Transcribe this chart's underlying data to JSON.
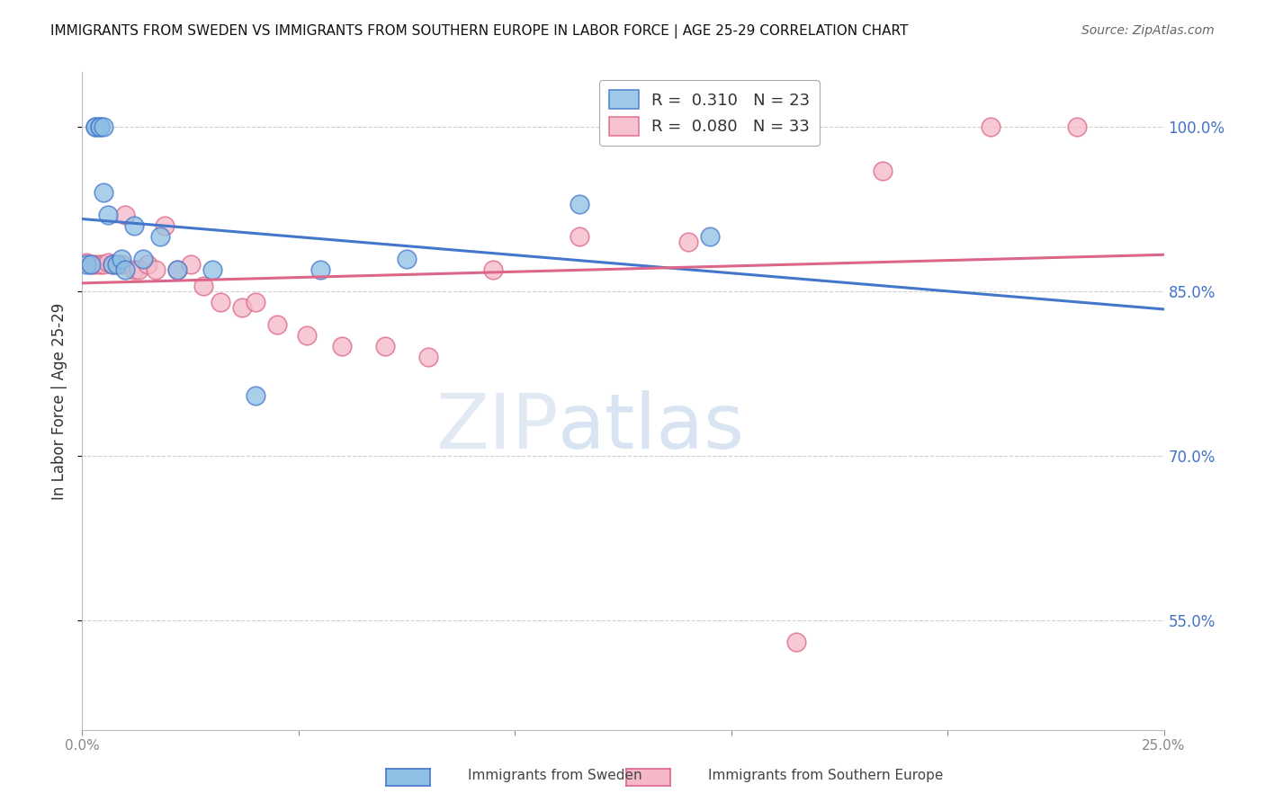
{
  "title": "IMMIGRANTS FROM SWEDEN VS IMMIGRANTS FROM SOUTHERN EUROPE IN LABOR FORCE | AGE 25-29 CORRELATION CHART",
  "source": "Source: ZipAtlas.com",
  "ylabel": "In Labor Force | Age 25-29",
  "xlim": [
    0.0,
    0.25
  ],
  "ylim": [
    0.45,
    1.05
  ],
  "sweden_color": "#8ec0e4",
  "south_europe_color": "#f5b8c8",
  "sweden_R": 0.31,
  "sweden_N": 23,
  "south_europe_R": 0.08,
  "south_europe_N": 33,
  "sweden_line_color": "#4477cc",
  "south_europe_line_color": "#dd6688",
  "watermark_zip": "ZIP",
  "watermark_atlas": "atlas",
  "sweden_x": [
    0.001,
    0.002,
    0.003,
    0.003,
    0.004,
    0.004,
    0.005,
    0.005,
    0.006,
    0.007,
    0.008,
    0.009,
    0.01,
    0.012,
    0.014,
    0.018,
    0.022,
    0.03,
    0.04,
    0.055,
    0.075,
    0.115,
    0.145
  ],
  "sweden_y": [
    0.875,
    0.875,
    1.0,
    1.0,
    1.0,
    1.0,
    1.0,
    0.94,
    0.92,
    0.875,
    0.875,
    0.88,
    0.87,
    0.91,
    0.88,
    0.9,
    0.87,
    0.87,
    0.755,
    0.87,
    0.88,
    0.93,
    0.9
  ],
  "south_europe_x": [
    0.001,
    0.002,
    0.003,
    0.004,
    0.005,
    0.006,
    0.007,
    0.008,
    0.009,
    0.01,
    0.012,
    0.013,
    0.015,
    0.017,
    0.019,
    0.022,
    0.025,
    0.028,
    0.032,
    0.037,
    0.04,
    0.045,
    0.052,
    0.06,
    0.07,
    0.08,
    0.095,
    0.115,
    0.14,
    0.165,
    0.185,
    0.21,
    0.23
  ],
  "south_europe_y": [
    0.876,
    0.875,
    0.875,
    0.875,
    0.875,
    0.876,
    0.875,
    0.875,
    0.875,
    0.92,
    0.87,
    0.87,
    0.875,
    0.87,
    0.91,
    0.87,
    0.875,
    0.855,
    0.84,
    0.835,
    0.84,
    0.82,
    0.81,
    0.8,
    0.8,
    0.79,
    0.87,
    0.9,
    0.895,
    0.53,
    0.96,
    1.0,
    1.0
  ],
  "background_color": "#ffffff",
  "grid_color": "#d0d0d0",
  "right_axis_color": "#4472c4"
}
